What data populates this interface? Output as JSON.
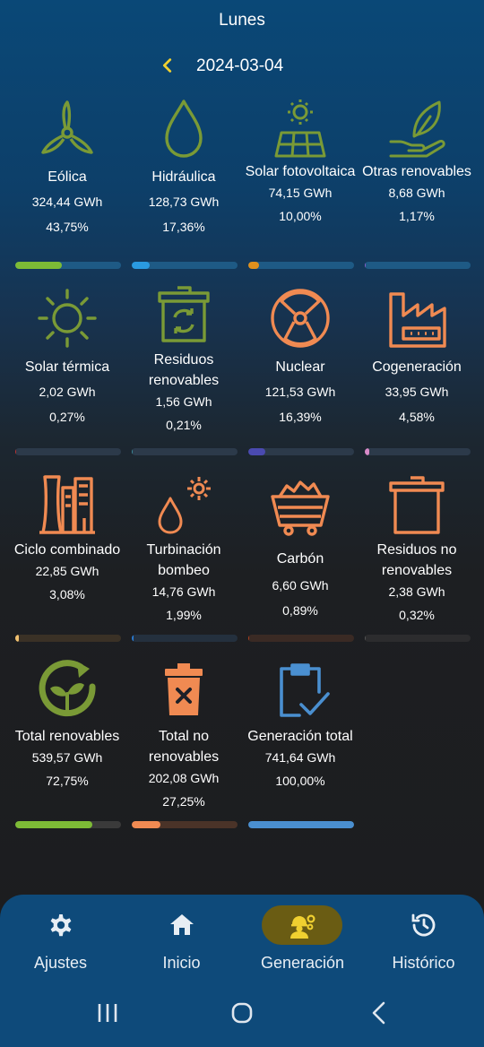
{
  "header": {
    "title": "Lunes",
    "date": "2024-03-04"
  },
  "colors": {
    "renewable": "#7a9a36",
    "nonrenewable": "#f08a52",
    "total": "#4a8fd0",
    "nav_active": "#f0d030"
  },
  "tiles": [
    {
      "id": "eolica",
      "icon": "wind-turbine-icon",
      "name": "Eólica",
      "value": "324,44 GWh",
      "percent": "43,75%",
      "fraction": 0.4375,
      "color": "#7dbb36",
      "track": "#1e5a85"
    },
    {
      "id": "hidraulica",
      "icon": "water-drop-icon",
      "name": "Hidráulica",
      "value": "128,73 GWh",
      "percent": "17,36%",
      "fraction": 0.1736,
      "color": "#2a9ae0",
      "track": "#1e5a85"
    },
    {
      "id": "solar-fotovoltaica",
      "icon": "solar-panel-icon",
      "name": "Solar fotovoltaica",
      "value": "74,15 GWh",
      "percent": "10,00%",
      "fraction": 0.1,
      "color": "#e0901c",
      "track": "#1e5a85"
    },
    {
      "id": "otras-renovables",
      "icon": "leaf-hand-icon",
      "name": "Otras renovables",
      "value": "8,68 GWh",
      "percent": "1,17%",
      "fraction": 0.0117,
      "color": "#8a5cc8",
      "track": "#1e5a85"
    },
    {
      "id": "solar-termica",
      "icon": "sun-icon",
      "name": "Solar térmica",
      "value": "2,02 GWh",
      "percent": "0,27%",
      "fraction": 0.0027,
      "color": "#c03030",
      "track": "#2c3a4a"
    },
    {
      "id": "residuos-renovables",
      "icon": "recycle-bin-icon",
      "name": "Residuos renovables",
      "value": "1,56 GWh",
      "percent": "0,21%",
      "fraction": 0.0021,
      "color": "#3a8a9a",
      "track": "#2c3a4a"
    },
    {
      "id": "nuclear",
      "icon": "radiation-icon",
      "name": "Nuclear",
      "value": "121,53 GWh",
      "percent": "16,39%",
      "fraction": 0.1639,
      "color": "#4a4ab0",
      "track": "#2c3a4a"
    },
    {
      "id": "cogeneracion",
      "icon": "factory-icon",
      "name": "Cogeneración",
      "value": "33,95 GWh",
      "percent": "4,58%",
      "fraction": 0.0458,
      "color": "#d88ac8",
      "track": "#2c3a4a"
    },
    {
      "id": "ciclo-combinado",
      "icon": "power-plant-icon",
      "name": "Ciclo combinado",
      "value": "22,85 GWh",
      "percent": "3,08%",
      "fraction": 0.0308,
      "color": "#f0c070",
      "track": "#3a3126"
    },
    {
      "id": "turbinacion-bombeo",
      "icon": "drop-gear-icon",
      "name": "Turbinación bombeo",
      "value": "14,76 GWh",
      "percent": "1,99%",
      "fraction": 0.0199,
      "color": "#2a7ad0",
      "track": "#24303e"
    },
    {
      "id": "carbon",
      "icon": "coal-cart-icon",
      "name": "Carbón",
      "value": "6,60 GWh",
      "percent": "0,89%",
      "fraction": 0.0089,
      "color": "#b04020",
      "track": "#3a2a24"
    },
    {
      "id": "residuos-no-renovables",
      "icon": "trash-bin-icon",
      "name": "Residuos no renovables",
      "value": "2,38 GWh",
      "percent": "0,32%",
      "fraction": 0.0032,
      "color": "#555555",
      "track": "#2c2c2e"
    },
    {
      "id": "total-renovables",
      "icon": "recycle-plant-icon",
      "name": "Total renovables",
      "value": "539,57 GWh",
      "percent": "72,75%",
      "fraction": 0.7275,
      "color": "#7dbb36",
      "track": "#3a3a3a"
    },
    {
      "id": "total-no-renovables",
      "icon": "trash-x-icon",
      "name": "Total no renovables",
      "value": "202,08 GWh",
      "percent": "27,25%",
      "fraction": 0.2725,
      "color": "#f08a52",
      "track": "#4a3328"
    },
    {
      "id": "generacion-total",
      "icon": "clipboard-check-icon",
      "name": "Generación total",
      "value": "741,64 GWh",
      "percent": "100,00%",
      "fraction": 1.0,
      "color": "#4a8fd0",
      "track": "#2a4560"
    }
  ],
  "nav": [
    {
      "icon": "gear-icon",
      "label": "Ajustes",
      "active": false
    },
    {
      "icon": "home-icon",
      "label": "Inicio",
      "active": false
    },
    {
      "icon": "worker-gears-icon",
      "label": "Generación",
      "active": true
    },
    {
      "icon": "history-icon",
      "label": "Histórico",
      "active": false
    }
  ],
  "system_nav": [
    "recent-apps-icon",
    "home-circle-icon",
    "back-icon"
  ]
}
